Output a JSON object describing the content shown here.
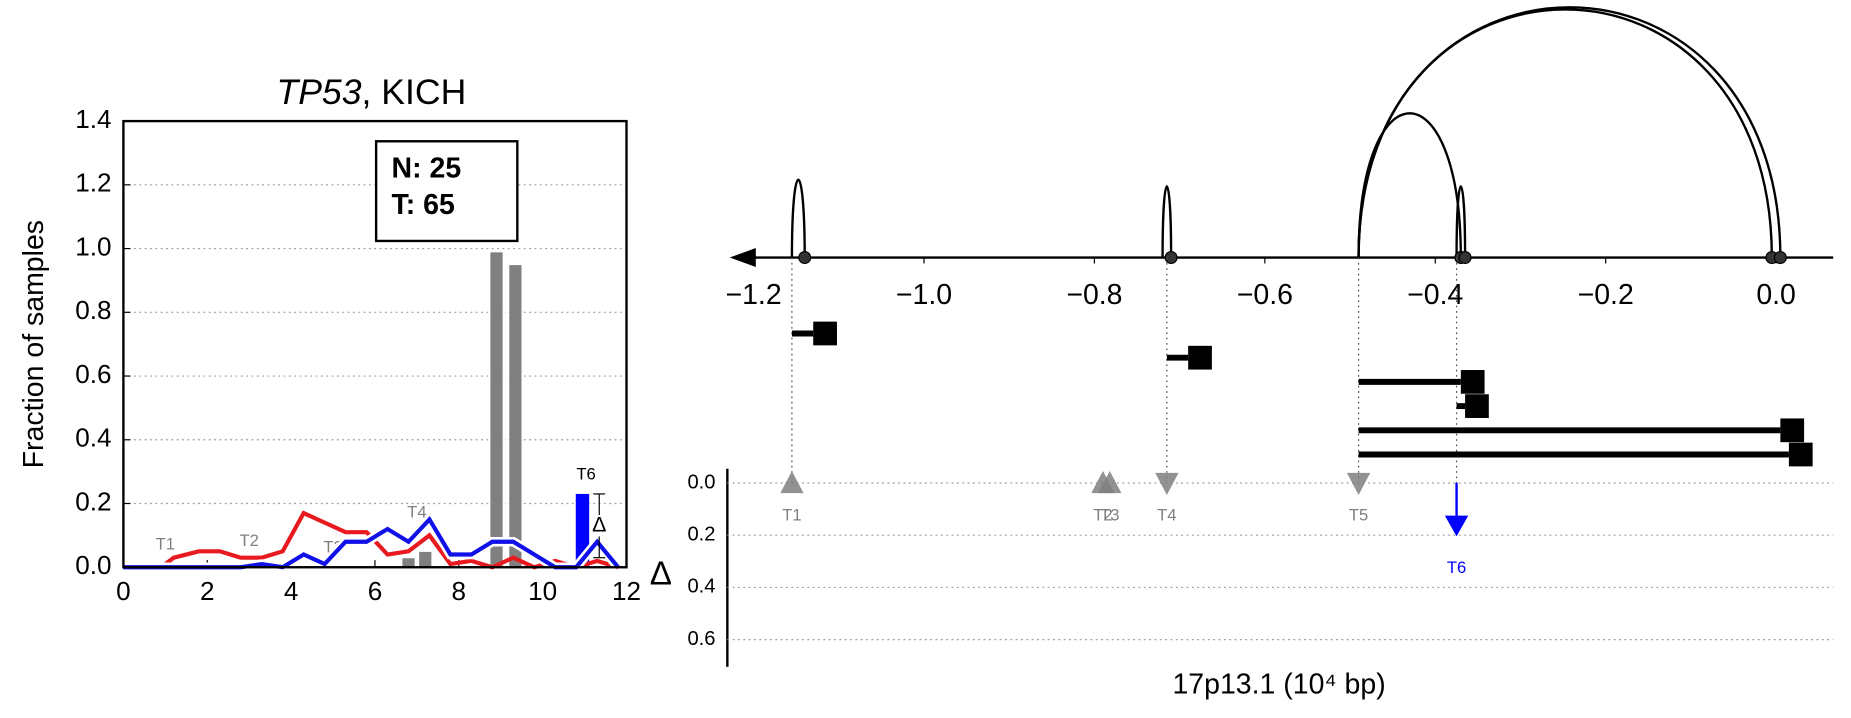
{
  "chart_data": [
    {
      "type": "bar",
      "title": [
        "TP53",
        ", KICH"
      ],
      "ylabel": "Fraction of samples",
      "xlim": [
        0,
        12
      ],
      "xticks": [
        0,
        2,
        4,
        6,
        8,
        10,
        12
      ],
      "ylim": [
        0,
        1.4
      ],
      "yticks": [
        {
          "value": 0,
          "label": "0.0"
        },
        0.2,
        0.4,
        0.6,
        0.8,
        {
          "value": 1,
          "label": "1.0"
        },
        1.2,
        1.4
      ],
      "grid": true,
      "annotation": [
        "N: 25",
        "T: 65"
      ],
      "bars": {
        "color": "#808080",
        "x": [
          6.8,
          7.2,
          8.9,
          9.35
        ],
        "values": [
          0.03,
          0.05,
          0.99,
          0.95
        ]
      },
      "series": [
        {
          "color": "#e8191f",
          "x": [
            0,
            0.9,
            1.2,
            1.8,
            2.3,
            2.8,
            3.3,
            3.8,
            4.3,
            4.8,
            5.3,
            5.8,
            6.3,
            6.8,
            7.3,
            7.8,
            8.3,
            8.8,
            9.3,
            9.8,
            10.3,
            10.8,
            11.3,
            11.8
          ],
          "values": [
            0,
            0,
            0.03,
            0.05,
            0.05,
            0.03,
            0.03,
            0.05,
            0.17,
            0.14,
            0.11,
            0.11,
            0.04,
            0.05,
            0.1,
            0.01,
            0.02,
            0,
            0.03,
            0,
            0.02,
            0,
            0.02,
            0
          ]
        },
        {
          "color": "#1010e8",
          "x": [
            0,
            0.9,
            1.2,
            1.8,
            2.3,
            2.8,
            3.3,
            3.8,
            4.3,
            4.8,
            5.3,
            5.8,
            6.3,
            6.8,
            7.3,
            7.8,
            8.3,
            8.8,
            9.3,
            9.8,
            10.3,
            10.8,
            11.3,
            11.8
          ],
          "values": [
            0,
            0,
            0,
            0,
            0,
            0,
            0.01,
            0,
            0.04,
            0.01,
            0.08,
            0.08,
            0.12,
            0.08,
            0.15,
            0.04,
            0.04,
            0.08,
            0.08,
            0.04,
            0,
            0,
            0.08,
            0
          ]
        }
      ],
      "labels": [
        {
          "text": "T1",
          "x": 1,
          "y": 0.07
        },
        {
          "text": "T2",
          "x": 3,
          "y": 0.08
        },
        {
          "text": "T3",
          "x": 5,
          "y": 0.06
        },
        {
          "text": "T4",
          "x": 7,
          "y": 0.17
        }
      ],
      "highlight": {
        "label": "T6",
        "color": "#0000ff",
        "x": 10.95,
        "value": 0.23,
        "marker": "Δ",
        "marker_x": 11.35,
        "marker_value": 0.13,
        "error": 0.1
      }
    },
    {
      "type": "arc",
      "xlim": [
        -1.228,
        0.067
      ],
      "xticks": [
        {
          "value": -1.2,
          "label": "−1.2"
        },
        {
          "value": -1,
          "label": "−1.0"
        },
        {
          "value": -0.8,
          "label": "−0.8"
        },
        {
          "value": -0.6,
          "label": "−0.6"
        },
        {
          "value": -0.4,
          "label": "−0.4"
        },
        {
          "value": -0.2,
          "label": "−0.2"
        },
        {
          "value": 0,
          "label": "0.0"
        }
      ],
      "arcs": [
        [
          -1.155,
          -1.14
        ],
        [
          -0.72,
          -0.71
        ],
        [
          -0.49,
          -0.37
        ],
        [
          -0.375,
          -0.365
        ],
        [
          -0.49,
          -0.005
        ],
        [
          -0.49,
          0.005
        ]
      ],
      "points": [
        -1.14,
        -0.71,
        -0.37,
        -0.365,
        -0.005,
        0.005
      ],
      "segments": [
        [
          -1.155,
          -1.13
        ],
        [
          -0.715,
          -0.69
        ],
        [
          -0.49,
          -0.37
        ],
        [
          -0.375,
          -0.365
        ],
        [
          -0.49,
          0.005
        ],
        [
          -0.49,
          0.015
        ]
      ],
      "guides": [
        -1.155,
        -0.715,
        -0.49,
        -0.375
      ],
      "lower": {
        "ylabel": "Δ",
        "xlabel": "17p13.1 (10⁴ bp)",
        "ylim": [
          0,
          0.7
        ],
        "yticks": [
          {
            "value": 0,
            "label": "0.0"
          },
          0.2,
          0.4,
          0.6
        ],
        "grid": true,
        "markers": [
          {
            "label": "T1",
            "x": -1.155,
            "value": 0,
            "shape": "up",
            "color": "#808080"
          },
          {
            "label": "T2",
            "x": -0.79,
            "value": 0,
            "shape": "up",
            "color": "#808080"
          },
          {
            "label": "T3",
            "x": -0.782,
            "value": 0,
            "shape": "up",
            "color": "#808080"
          },
          {
            "label": "T4",
            "x": -0.715,
            "value": 0,
            "shape": "down",
            "color": "#808080"
          },
          {
            "label": "T5",
            "x": -0.49,
            "value": 0,
            "shape": "down",
            "color": "#808080"
          },
          {
            "label": "T6",
            "x": -0.375,
            "value": 0.2,
            "shape": "arrow",
            "color": "#0000ff"
          }
        ]
      }
    }
  ]
}
